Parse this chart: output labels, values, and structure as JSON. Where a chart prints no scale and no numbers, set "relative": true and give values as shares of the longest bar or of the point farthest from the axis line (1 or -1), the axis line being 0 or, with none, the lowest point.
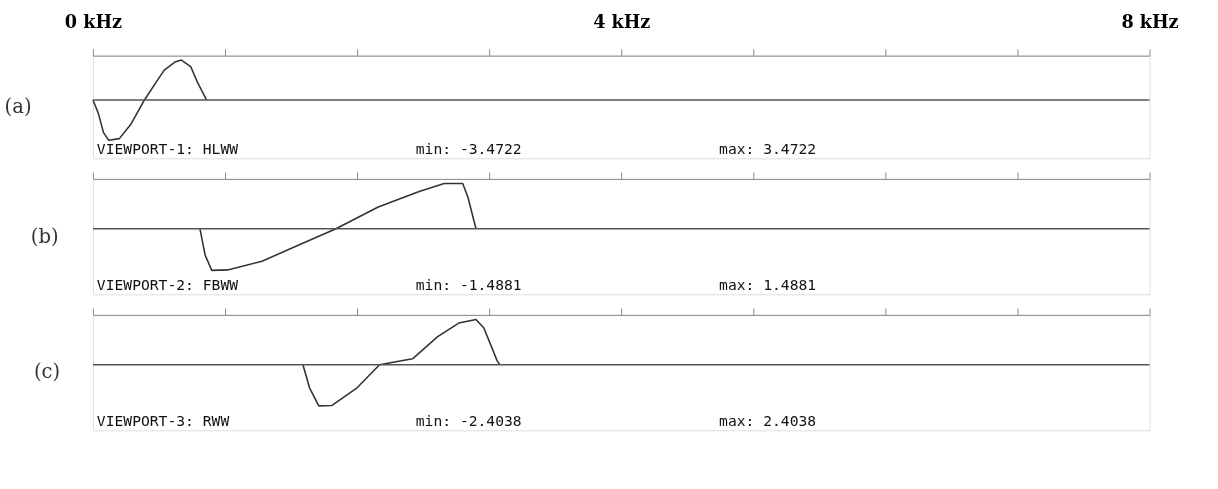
{
  "chart_data": [
    {
      "type": "line",
      "title": "(a)",
      "relative": true,
      "xlim": [
        0,
        8
      ],
      "xticks": [
        {
          "value": 0,
          "label": "0 kHz"
        },
        {
          "value": 1,
          "label": null
        },
        {
          "value": 2,
          "label": null
        },
        {
          "value": 3,
          "label": null
        },
        {
          "value": 4,
          "label": "4 kHz"
        },
        {
          "value": 5,
          "label": null
        },
        {
          "value": 6,
          "label": null
        },
        {
          "value": 7,
          "label": null
        },
        {
          "value": 8,
          "label": "8 kHz"
        }
      ],
      "grid": false,
      "marker": "none",
      "line_style": "solid",
      "annotations": [
        "VIEWPORT-1: HLWW",
        "min: -3.4722",
        "max: 3.4722"
      ],
      "series": [
        {
          "color": "#333333",
          "x": [
            0,
            0.04,
            0.08,
            0.12,
            0.2,
            0.29,
            0.39,
            0.48,
            0.54,
            0.62,
            0.67,
            0.74,
            0.79,
            0.86
          ],
          "values": [
            0,
            -0.32,
            -0.81,
            -1.0,
            -0.96,
            -0.59,
            0,
            0.45,
            0.74,
            0.94,
            0.99,
            0.83,
            0.45,
            0
          ]
        }
      ]
    },
    {
      "type": "line",
      "title": "(b)",
      "relative": true,
      "tick_labels": false,
      "xlim": [
        0,
        8
      ],
      "xticks": [
        0,
        1,
        2,
        3,
        4,
        5,
        6,
        7,
        8
      ],
      "grid": false,
      "marker": "none",
      "line_style": "solid",
      "annotations": [
        "VIEWPORT-2: FBWW",
        "min: -1.4881",
        "max: 1.4881"
      ],
      "series": [
        {
          "color": "#333333",
          "x": [
            0.81,
            0.85,
            0.9,
            1.02,
            1.28,
            1.55,
            1.84,
            2.16,
            2.47,
            2.66,
            2.8,
            2.84,
            2.9
          ],
          "values": [
            0,
            -0.59,
            -0.92,
            -0.91,
            -0.72,
            -0.37,
            0,
            0.48,
            0.82,
            1.0,
            1.0,
            0.69,
            0
          ]
        }
      ]
    },
    {
      "type": "line",
      "title": "(c)",
      "relative": true,
      "tick_labels": false,
      "xlim": [
        0,
        8
      ],
      "xticks": [
        0,
        1,
        2,
        3,
        4,
        5,
        6,
        7,
        8
      ],
      "grid": false,
      "marker": "none",
      "line_style": "solid",
      "annotations": [
        "VIEWPORT-3: RWW",
        "min: -2.4038",
        "max: 2.4038"
      ],
      "series": [
        {
          "color": "#333333",
          "x": [
            1.59,
            1.64,
            1.71,
            1.81,
            2.0,
            2.17,
            2.42,
            2.61,
            2.77,
            2.9,
            2.96,
            3.06,
            3.08
          ],
          "values": [
            0,
            -0.51,
            -0.91,
            -0.9,
            -0.51,
            0,
            0.13,
            0.62,
            0.92,
            1.0,
            0.81,
            0.09,
            0
          ]
        }
      ]
    }
  ]
}
